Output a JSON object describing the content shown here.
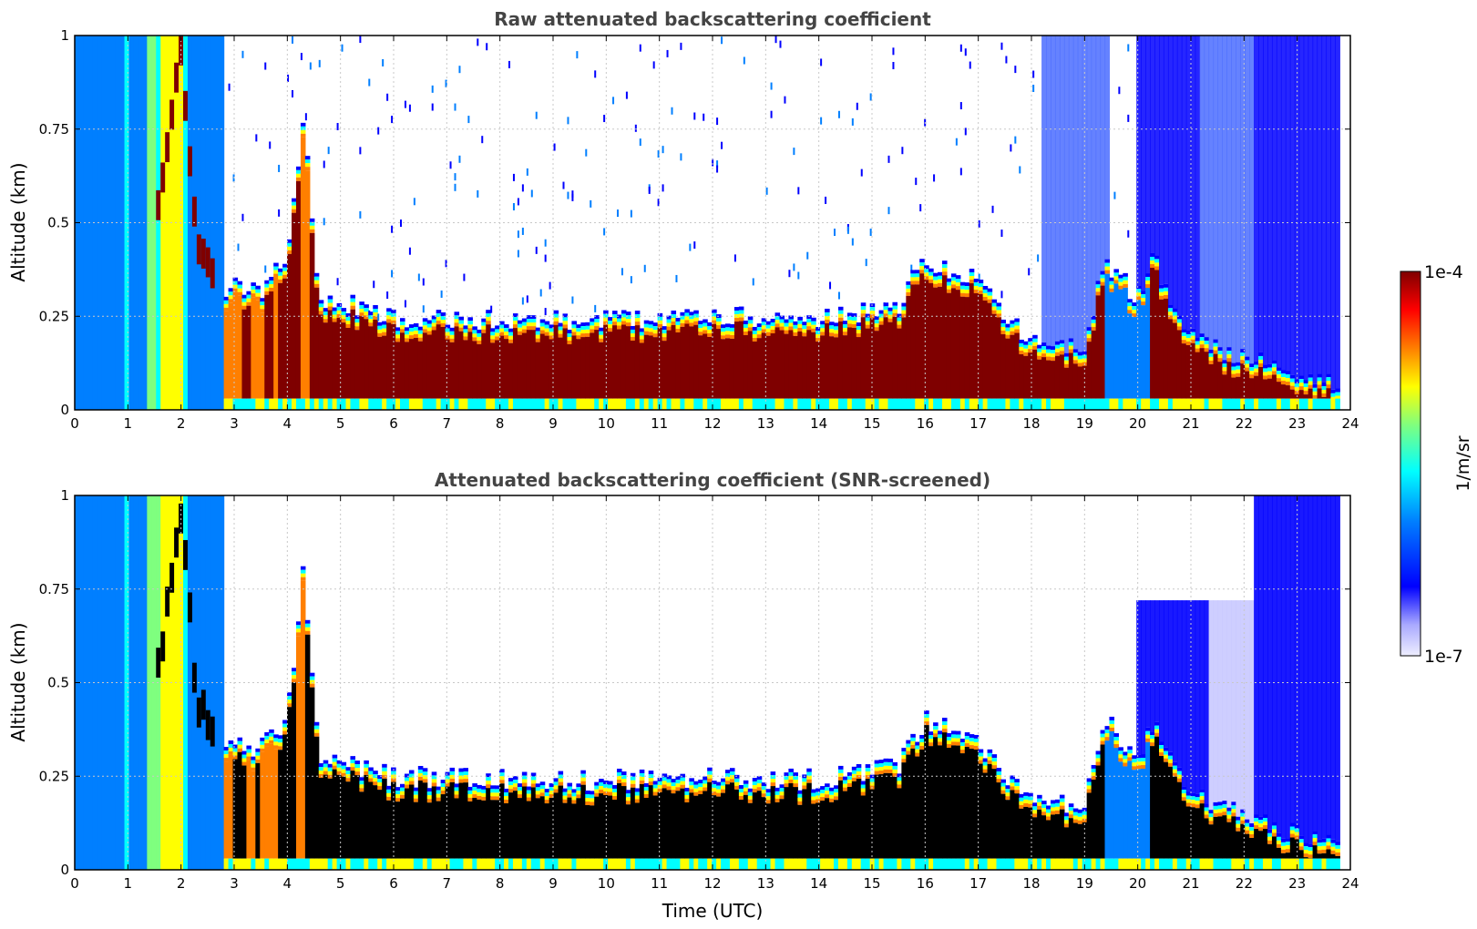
{
  "colors": {
    "jet": [
      "#00007f",
      "#0000ff",
      "#007fff",
      "#00ffff",
      "#7fff7f",
      "#ffff00",
      "#ff7f00",
      "#ff0000",
      "#7f0000"
    ],
    "clip_above_max": "#000000",
    "background": "#ffffff",
    "title": "#444444",
    "grid": "#c8c8c8"
  },
  "chart_data": [
    {
      "type": "heatmap",
      "title": "Raw attenuated backscattering coefficient",
      "xlabel": "",
      "ylabel": "Altitude (km)",
      "xlim": [
        0,
        24
      ],
      "ylim": [
        0,
        1
      ],
      "xticks": [
        "0",
        "1",
        "2",
        "3",
        "4",
        "5",
        "6",
        "7",
        "8",
        "9",
        "10",
        "11",
        "12",
        "13",
        "14",
        "15",
        "16",
        "17",
        "18",
        "19",
        "20",
        "21",
        "22",
        "23",
        "24"
      ],
      "yticks": [
        "0",
        "0.25",
        "0.5",
        "0.75",
        "1"
      ],
      "grid": true,
      "saturated_color": "#7f0000",
      "cloud_base_profile": {
        "time_utc": [
          0,
          1,
          2,
          2.3,
          2.8,
          3.5,
          4.0,
          4.3,
          4.6,
          6,
          8,
          10,
          12,
          14,
          15.5,
          16,
          17,
          17.5,
          18,
          19,
          19.4,
          20,
          20.3,
          21,
          22,
          23,
          23.8
        ],
        "top_km": [
          0,
          0,
          1.0,
          0.5,
          0.33,
          0.32,
          0.4,
          0.8,
          0.3,
          0.25,
          0.24,
          0.24,
          0.25,
          0.24,
          0.28,
          0.4,
          0.35,
          0.25,
          0.18,
          0.18,
          0.4,
          0.3,
          0.4,
          0.2,
          0.14,
          0.1,
          0.08
        ]
      }
    },
    {
      "type": "heatmap",
      "title": "Attenuated backscattering coefficient (SNR-screened)",
      "xlabel": "Time (UTC)",
      "ylabel": "Altitude (km)",
      "xlim": [
        0,
        24
      ],
      "ylim": [
        0,
        1
      ],
      "xticks": [
        "0",
        "1",
        "2",
        "3",
        "4",
        "5",
        "6",
        "7",
        "8",
        "9",
        "10",
        "11",
        "12",
        "13",
        "14",
        "15",
        "16",
        "17",
        "18",
        "19",
        "20",
        "21",
        "22",
        "23",
        "24"
      ],
      "yticks": [
        "0",
        "0.25",
        "0.5",
        "0.75",
        "1"
      ],
      "grid": true,
      "saturated_color": "#000000"
    }
  ],
  "colorbar": {
    "label": "1/m/sr",
    "max_label": "1e-4",
    "min_label": "1e-7",
    "range": [
      1e-07,
      0.0001
    ],
    "scale": "log"
  }
}
